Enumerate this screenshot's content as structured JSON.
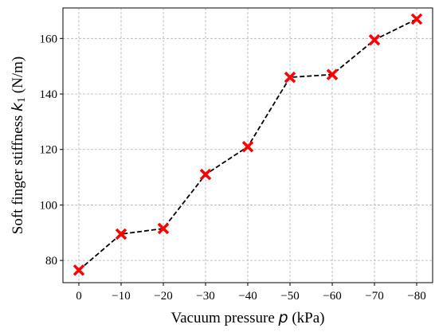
{
  "chart_data": {
    "type": "line",
    "x": [
      "0",
      "−10",
      "−20",
      "−30",
      "−40",
      "−50",
      "−60",
      "−70",
      "−80"
    ],
    "series": [
      {
        "values": [
          76.5,
          89.5,
          91.5,
          111,
          121,
          146,
          147,
          159.5,
          167
        ]
      }
    ],
    "xlabel": {
      "pre": "Vacuum pressure ",
      "symbol": "p",
      "post": " (kPa)"
    },
    "ylabel": {
      "pre": "Soft finger stiffness ",
      "symbol": "k",
      "sub": "1",
      "post": " (N/m)"
    },
    "yticks": [
      80,
      100,
      120,
      140,
      160
    ],
    "ylim": [
      72,
      171
    ],
    "grid": true,
    "line_style": "dashed",
    "line_color": "#000000",
    "marker": "x",
    "marker_color": "#ff0000"
  }
}
